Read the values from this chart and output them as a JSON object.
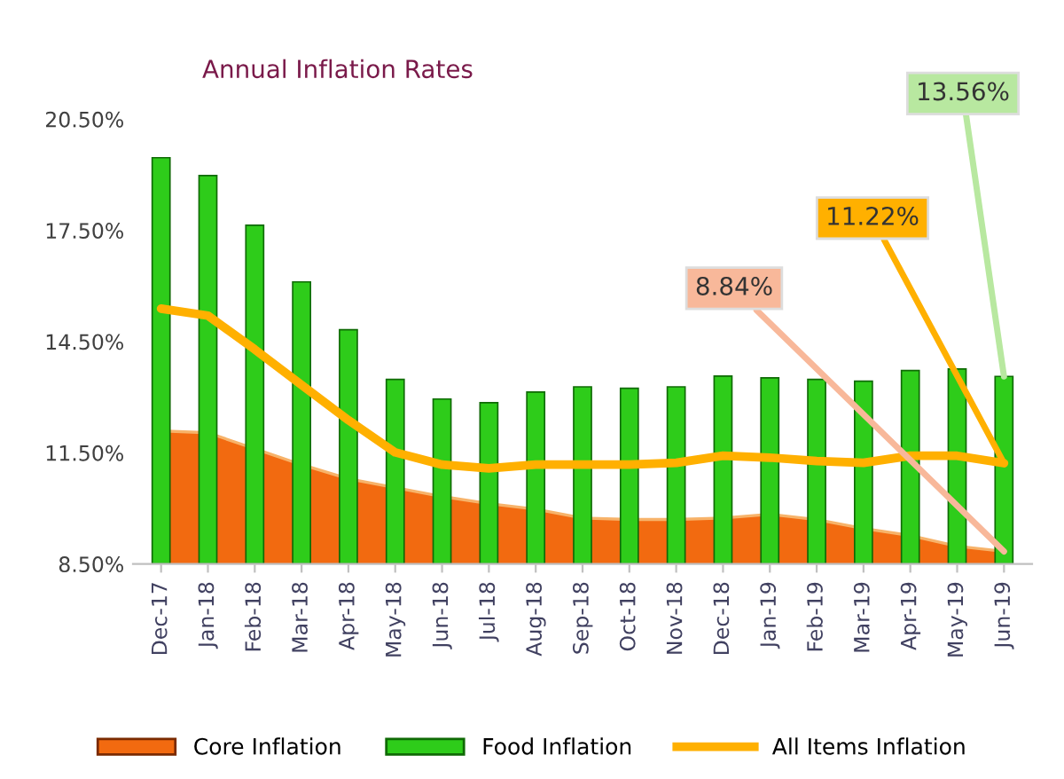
{
  "chart_data": {
    "type": "bar",
    "title": "Annual Inflation Rates",
    "categories": [
      "Dec-17",
      "Jan-18",
      "Feb-18",
      "Mar-18",
      "Apr-18",
      "May-18",
      "Jun-18",
      "Jul-18",
      "Aug-18",
      "Sep-18",
      "Oct-18",
      "Nov-18",
      "Dec-18",
      "Jan-19",
      "Feb-19",
      "Mar-19",
      "Apr-19",
      "May-19",
      "Jun-19"
    ],
    "series": [
      {
        "name": "Core Inflation",
        "type": "area",
        "color": "#f26a10",
        "values": [
          12.09,
          12.04,
          11.61,
          11.18,
          10.8,
          10.56,
          10.32,
          10.13,
          9.98,
          9.74,
          9.7,
          9.7,
          9.74,
          9.84,
          9.7,
          9.46,
          9.27,
          8.98,
          8.84
        ]
      },
      {
        "name": "Food Inflation",
        "color": "#2ecc1a",
        "values": [
          19.46,
          18.98,
          17.64,
          16.11,
          14.82,
          13.48,
          12.95,
          12.85,
          13.14,
          13.28,
          13.24,
          13.28,
          13.57,
          13.52,
          13.48,
          13.43,
          13.72,
          13.76,
          13.56
        ]
      },
      {
        "name": "All Items Inflation",
        "type": "line",
        "color": "#ffb000",
        "values": [
          15.39,
          15.2,
          14.29,
          13.33,
          12.38,
          11.51,
          11.18,
          11.08,
          11.18,
          11.18,
          11.18,
          11.23,
          11.42,
          11.37,
          11.28,
          11.23,
          11.42,
          11.42,
          11.22
        ]
      }
    ],
    "ylim": [
      8.5,
      20.5
    ],
    "yticks": [
      {
        "value": 8.5,
        "label": "8.50%"
      },
      {
        "value": 11.5,
        "label": "11.50%"
      },
      {
        "value": 14.5,
        "label": "14.50%"
      },
      {
        "value": 17.5,
        "label": "17.50%"
      },
      {
        "value": 20.5,
        "label": "20.50%"
      }
    ],
    "annotations": [
      {
        "text": "8.84%",
        "x": "Jun-19",
        "y": 8.84
      },
      {
        "text": "11.22%",
        "x": "Jun-19",
        "y": 11.22
      },
      {
        "text": "13.56%",
        "x": "Jun-19",
        "y": 13.56
      }
    ],
    "grid": false,
    "legend": "bottom",
    "line_style": "solid",
    "marker": "none"
  }
}
